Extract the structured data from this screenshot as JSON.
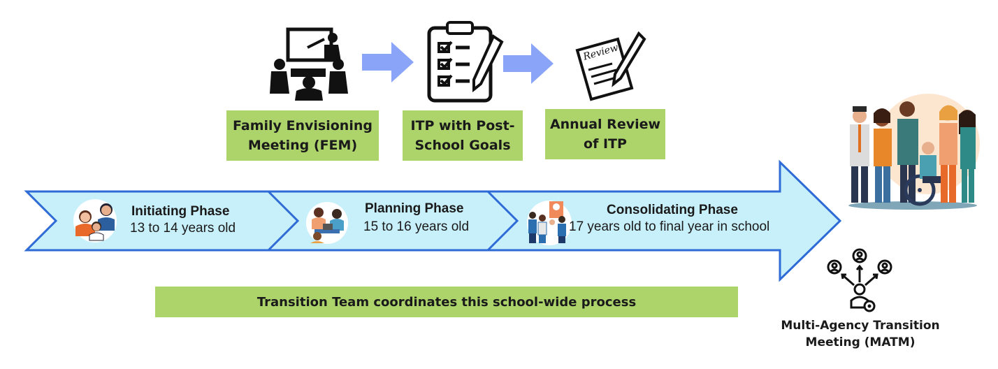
{
  "process_steps": [
    {
      "icon": "meeting-presentation-icon",
      "line1": "Family Envisioning",
      "line2": "Meeting (FEM)"
    },
    {
      "icon": "clipboard-checklist-icon",
      "line1": "ITP with Post-",
      "line2": "School Goals"
    },
    {
      "icon": "review-document-icon",
      "line1": "Annual Review",
      "line2": "of ITP"
    }
  ],
  "phases": [
    {
      "icon": "family-icon",
      "title": "Initiating Phase",
      "subtitle": "13 to 14 years old"
    },
    {
      "icon": "students-studying-icon",
      "title": "Planning Phase",
      "subtitle": "15 to 16 years old"
    },
    {
      "icon": "group-handshake-icon",
      "title": "Consolidating Phase",
      "subtitle": "17 years old to final year in school"
    }
  ],
  "team_bar": "Transition Team coordinates this school-wide process",
  "matm": {
    "icon": "network-people-icon",
    "line1": "Multi-Agency Transition",
    "line2": "Meeting (MATM)"
  },
  "group_image": "diverse-group-illustration",
  "colors": {
    "label_green": "#acd46b",
    "arrow_fill": "#c8f0fb",
    "arrow_stroke": "#2e6bd6",
    "step_arrow": "#8aa4f8"
  }
}
